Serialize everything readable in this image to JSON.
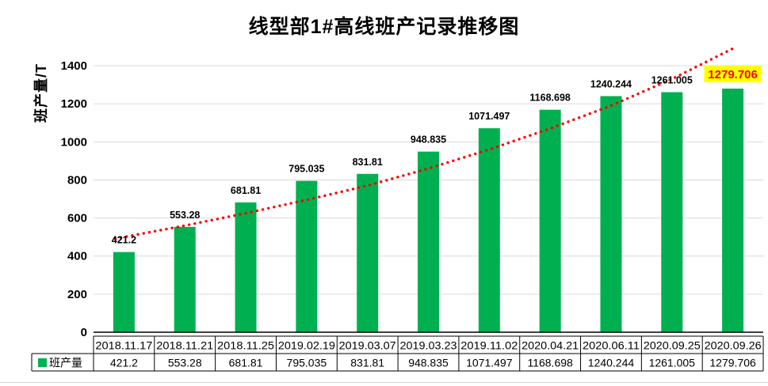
{
  "chart_data": {
    "type": "bar",
    "title": "线型部1#高线班产记录推移图",
    "ylabel": "班产量/T",
    "legend_label": "班产量",
    "categories": [
      "2018.11.17",
      "2018.11.21",
      "2018.11.25",
      "2019.02.19",
      "2019.03.07",
      "2019.03.23",
      "2019.11.02",
      "2020.04.21",
      "2020.06.11",
      "2020.09.25",
      "2020.09.26"
    ],
    "values": [
      421.2,
      553.28,
      681.81,
      795.035,
      831.81,
      948.835,
      1071.497,
      1168.698,
      1240.244,
      1261.005,
      1279.706
    ],
    "value_labels": [
      "421.2",
      "553.28",
      "681.81",
      "795.035",
      "831.81",
      "948.835",
      "1071.497",
      "1168.698",
      "1240.244",
      "1261.005",
      "1279.706"
    ],
    "ylim": [
      0,
      1500
    ],
    "yticks": [
      0,
      200,
      400,
      600,
      800,
      1000,
      1200,
      1400
    ],
    "grid": true,
    "legend_position": "table-left",
    "colors": {
      "bar": "#00B050",
      "trendline": "#FF0000",
      "gridline": "#D9D9D9",
      "axis_line": "#000000",
      "table_border": "#000000",
      "label_text": "#000000",
      "highlight_text": "#FF0000",
      "highlight_bg": "#FFFF00"
    },
    "trendline": {
      "style": "dotted",
      "color": "#FF0000",
      "values": [
        500,
        560,
        625,
        695,
        770,
        860,
        960,
        1070,
        1190,
        1330,
        1490
      ]
    },
    "highlight": {
      "index": 10,
      "label": "1279.706"
    }
  }
}
